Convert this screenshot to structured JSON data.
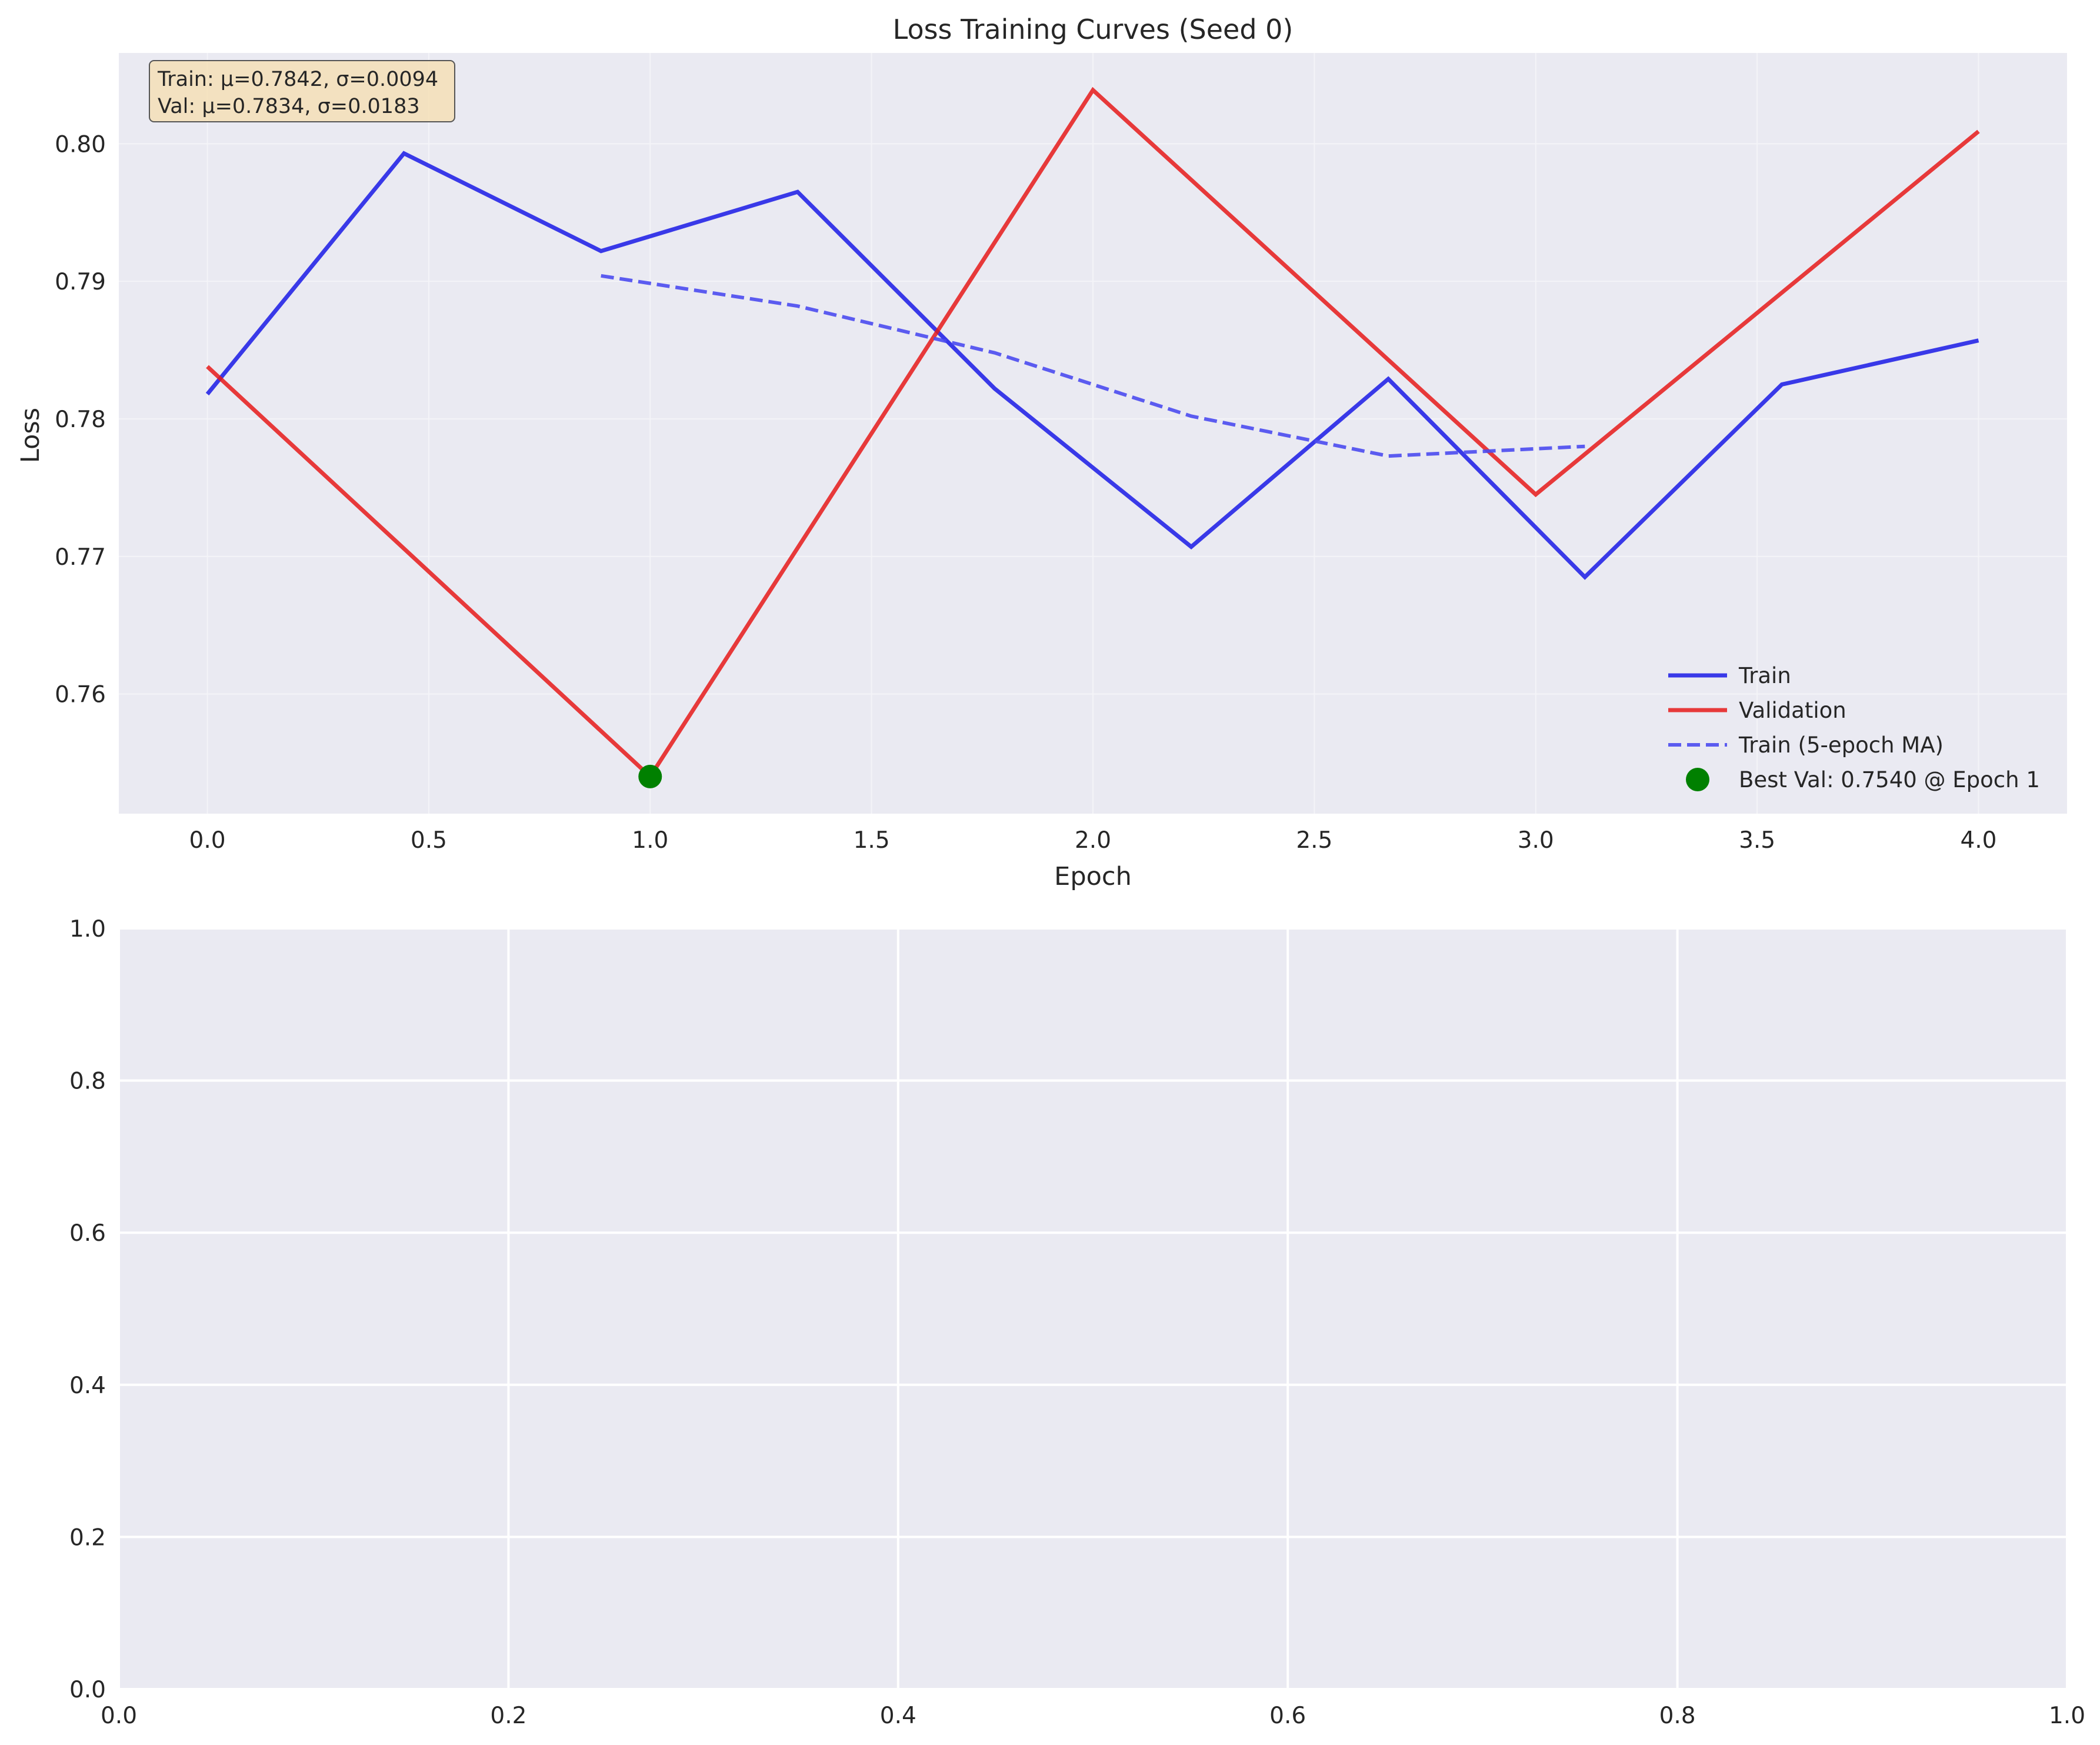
{
  "chart_data": [
    {
      "type": "line",
      "title": "Loss Training Curves (Seed 0)",
      "xlabel": "Epoch",
      "ylabel": "Loss",
      "xlim": [
        -0.2,
        4.2
      ],
      "ylim": [
        0.7513,
        0.8066
      ],
      "xticks": [
        "0.0",
        "0.5",
        "1.0",
        "1.5",
        "2.0",
        "2.5",
        "3.0",
        "3.5",
        "4.0"
      ],
      "yticks": [
        "0.76",
        "0.77",
        "0.78",
        "0.79",
        "0.80"
      ],
      "grid": true,
      "legend_position": "lower-right",
      "stats_box": {
        "line1": "Train: μ=0.7842, σ=0.0094",
        "line2": "Val: μ=0.7834, σ=0.0183"
      },
      "series": [
        {
          "name": "Train",
          "color": "#1a1ae6",
          "style": "solid",
          "x": [
            0.0,
            0.444,
            0.889,
            1.333,
            1.778,
            2.222,
            2.667,
            3.111,
            3.556,
            4.0
          ],
          "y": [
            0.7818,
            0.7993,
            0.7922,
            0.7965,
            0.7822,
            0.7707,
            0.7829,
            0.7685,
            0.7825,
            0.7857
          ]
        },
        {
          "name": "Validation",
          "color": "#e61a1a",
          "style": "solid",
          "x": [
            0.0,
            1.0,
            2.0,
            3.0,
            4.0
          ],
          "y": [
            0.7838,
            0.754,
            0.8039,
            0.7745,
            0.8009
          ]
        },
        {
          "name": "Train (5-epoch MA)",
          "color": "#4b4bf0",
          "style": "dashed",
          "x": [
            0.889,
            1.333,
            1.778,
            2.222,
            2.667,
            3.111
          ],
          "y": [
            0.7904,
            0.7882,
            0.7848,
            0.7802,
            0.7773,
            0.778
          ]
        }
      ],
      "markers": [
        {
          "name": "Best Val: 0.7540 @ Epoch 1",
          "color": "#008000",
          "x": 1.0,
          "y": 0.754
        }
      ]
    },
    {
      "type": "line",
      "title": "",
      "xlabel": "",
      "ylabel": "",
      "xlim": [
        0.0,
        1.0
      ],
      "ylim": [
        0.0,
        1.0
      ],
      "xticks": [
        "0.0",
        "0.2",
        "0.4",
        "0.6",
        "0.8",
        "1.0"
      ],
      "yticks": [
        "0.0",
        "0.2",
        "0.4",
        "0.6",
        "0.8",
        "1.0"
      ],
      "grid": true,
      "series": []
    }
  ],
  "colors": {
    "axes_bg": "#eaeaf2",
    "grid_top": "#f2f2f7",
    "grid_bottom": "#ffffff",
    "stats_box_bg": "#f5deb3"
  }
}
